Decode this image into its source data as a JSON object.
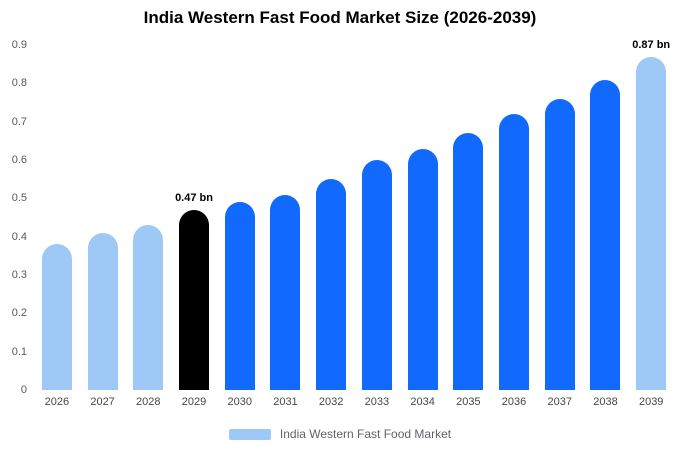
{
  "title": "India Western Fast Food Market Size (2026-2039)",
  "colors": {
    "light": "#9ec9f7",
    "primary": "#1269fe",
    "highlight": "#000000",
    "axis_text": "#595959",
    "annotation_text": "#000000"
  },
  "legend": {
    "label": "India Western Fast Food Market",
    "swatch_color": "#9ec9f7"
  },
  "chart_data": {
    "type": "bar",
    "title": "India Western Fast Food Market Size (2026-2039)",
    "xlabel": "",
    "ylabel": "",
    "categories": [
      "2026",
      "2027",
      "2028",
      "2029",
      "2030",
      "2031",
      "2032",
      "2033",
      "2034",
      "2035",
      "2036",
      "2037",
      "2038",
      "2039"
    ],
    "values": [
      0.38,
      0.41,
      0.43,
      0.47,
      0.49,
      0.51,
      0.55,
      0.6,
      0.63,
      0.67,
      0.72,
      0.76,
      0.81,
      0.87
    ],
    "bar_colors": [
      "light",
      "light",
      "light",
      "highlight",
      "primary",
      "primary",
      "primary",
      "primary",
      "primary",
      "primary",
      "primary",
      "primary",
      "primary",
      "light"
    ],
    "annotations": [
      {
        "category": "2029",
        "text": "0.47 bn"
      },
      {
        "category": "2039",
        "text": "0.87 bn"
      }
    ],
    "ylim": [
      0,
      0.9
    ],
    "ytick_labels": [
      "0",
      "0.1",
      "0.2",
      "0.3",
      "0.4",
      "0.5",
      "0.6",
      "0.7",
      "0.8",
      "0.9"
    ],
    "grid": false,
    "legend_position": "bottom",
    "legend_entries": [
      "India Western Fast Food Market"
    ]
  }
}
